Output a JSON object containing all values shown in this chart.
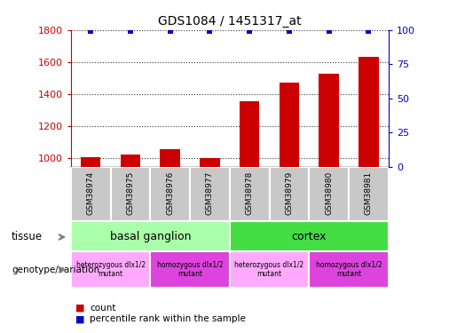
{
  "title": "GDS1084 / 1451317_at",
  "samples": [
    "GSM38974",
    "GSM38975",
    "GSM38976",
    "GSM38977",
    "GSM38978",
    "GSM38979",
    "GSM38980",
    "GSM38981"
  ],
  "bar_values": [
    1008,
    1022,
    1060,
    1003,
    1355,
    1470,
    1530,
    1635
  ],
  "percentile_values": [
    99.5,
    99.5,
    99.5,
    99.5,
    99.5,
    99.5,
    99.5,
    99.5
  ],
  "bar_color": "#cc0000",
  "dot_color": "#0000cc",
  "ylim_left": [
    950,
    1800
  ],
  "ylim_right": [
    0,
    100
  ],
  "yticks_left": [
    1000,
    1200,
    1400,
    1600,
    1800
  ],
  "yticks_right": [
    0,
    25,
    50,
    75,
    100
  ],
  "tissue_groups": [
    {
      "label": "basal ganglion",
      "start": 0,
      "end": 4,
      "color": "#aaffaa"
    },
    {
      "label": "cortex",
      "start": 4,
      "end": 8,
      "color": "#44dd44"
    }
  ],
  "genotype_groups": [
    {
      "label": "heterozygous dlx1/2\nmutant",
      "start": 0,
      "end": 2,
      "color": "#ffaaff"
    },
    {
      "label": "homozygous dlx1/2\nmutant",
      "start": 2,
      "end": 4,
      "color": "#dd44dd"
    },
    {
      "label": "heterozygous dlx1/2\nmutant",
      "start": 4,
      "end": 6,
      "color": "#ffaaff"
    },
    {
      "label": "homozygous dlx1/2\nmutant",
      "start": 6,
      "end": 8,
      "color": "#dd44dd"
    }
  ],
  "legend_count_color": "#cc0000",
  "legend_percentile_color": "#0000cc",
  "tissue_label": "tissue",
  "genotype_label": "genotype/variation",
  "left_axis_color": "#cc0000",
  "right_axis_color": "#0000cc",
  "sample_box_color": "#c8c8c8",
  "bar_width": 0.5
}
